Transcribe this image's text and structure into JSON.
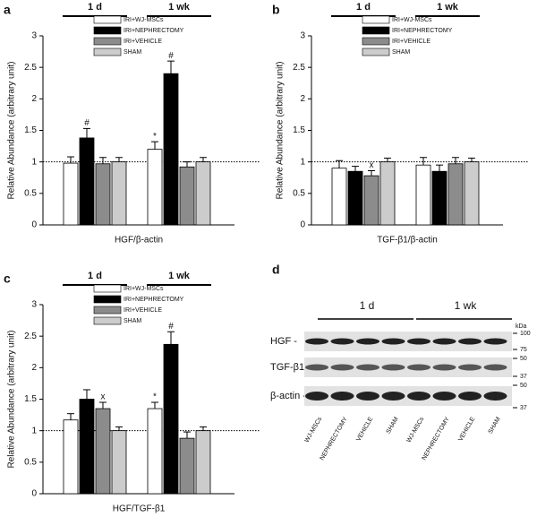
{
  "chart_data": [
    {
      "type": "bar",
      "panel": "a",
      "ylabel": "Relative Abundance (arbitrary unit)",
      "xlabel": "HGF/β-actin",
      "categories": [
        "1 d",
        "1 wk"
      ],
      "ylim": [
        0,
        3
      ],
      "yticks": [
        0,
        0.5,
        1,
        1.5,
        2,
        2.5,
        3
      ],
      "reference_line": 1,
      "series": [
        {
          "name": "IRI+WJ-MSCs",
          "color": "#ffffff",
          "values": [
            0.98,
            1.2
          ],
          "errors": [
            0.1,
            0.12
          ],
          "annotations": [
            null,
            "*"
          ]
        },
        {
          "name": "IRI+NEPHRECTOMY",
          "color": "#000000",
          "values": [
            1.38,
            2.4
          ],
          "errors": [
            0.15,
            0.2
          ],
          "annotations": [
            "#",
            "#"
          ]
        },
        {
          "name": "IRI+VEHICLE",
          "color": "#8c8c8c",
          "values": [
            0.97,
            0.92
          ],
          "errors": [
            0.1,
            0.08
          ],
          "annotations": [
            null,
            null
          ]
        },
        {
          "name": "SHAM",
          "color": "#cccccc",
          "values": [
            1.0,
            1.0
          ],
          "errors": [
            0.07,
            0.07
          ],
          "annotations": [
            null,
            null
          ]
        }
      ]
    },
    {
      "type": "bar",
      "panel": "b",
      "ylabel": "Relative Abundance (arbitrary unit)",
      "xlabel": "TGF-β1/β-actin",
      "categories": [
        "1 d",
        "1 wk"
      ],
      "ylim": [
        0,
        3
      ],
      "yticks": [
        0,
        0.5,
        1,
        1.5,
        2,
        2.5,
        3
      ],
      "reference_line": 1,
      "series": [
        {
          "name": "IRI+WJ-MSCs",
          "color": "#ffffff",
          "values": [
            0.9,
            0.95
          ],
          "errors": [
            0.12,
            0.12
          ],
          "annotations": [
            null,
            null
          ]
        },
        {
          "name": "IRI+NEPHRECTOMY",
          "color": "#000000",
          "values": [
            0.85,
            0.85
          ],
          "errors": [
            0.08,
            0.1
          ],
          "annotations": [
            null,
            null
          ]
        },
        {
          "name": "IRI+VEHICLE",
          "color": "#8c8c8c",
          "values": [
            0.78,
            0.97
          ],
          "errors": [
            0.08,
            0.1
          ],
          "annotations": [
            "x",
            null
          ]
        },
        {
          "name": "SHAM",
          "color": "#cccccc",
          "values": [
            1.0,
            1.0
          ],
          "errors": [
            0.06,
            0.06
          ],
          "annotations": [
            null,
            null
          ]
        }
      ]
    },
    {
      "type": "bar",
      "panel": "c",
      "ylabel": "Relative Abundance (arbitrary unit)",
      "xlabel": "HGF/TGF-β1",
      "categories": [
        "1 d",
        "1 wk"
      ],
      "ylim": [
        0,
        3
      ],
      "yticks": [
        0,
        0.5,
        1,
        1.5,
        2,
        2.5,
        3
      ],
      "reference_line": 1,
      "series": [
        {
          "name": "IRI+WJ-MSCs",
          "color": "#ffffff",
          "values": [
            1.17,
            1.35
          ],
          "errors": [
            0.1,
            0.1
          ],
          "annotations": [
            null,
            "*"
          ]
        },
        {
          "name": "IRI+NEPHRECTOMY",
          "color": "#000000",
          "values": [
            1.5,
            2.37
          ],
          "errors": [
            0.15,
            0.2
          ],
          "annotations": [
            null,
            "#"
          ]
        },
        {
          "name": "IRI+VEHICLE",
          "color": "#8c8c8c",
          "values": [
            1.35,
            0.88
          ],
          "errors": [
            0.1,
            0.1
          ],
          "annotations": [
            "x",
            null
          ]
        },
        {
          "name": "SHAM",
          "color": "#cccccc",
          "values": [
            1.0,
            1.0
          ],
          "errors": [
            0.06,
            0.06
          ],
          "annotations": [
            null,
            null
          ]
        }
      ]
    }
  ],
  "blot": {
    "panel": "d",
    "groups": [
      "1 d",
      "1 wk"
    ],
    "unit": "kDa",
    "rows": [
      "HGF -",
      "TGF-β1-",
      "β-actin -"
    ],
    "markers": [
      100,
      75,
      50,
      37,
      50,
      37
    ],
    "lanes": [
      "WJ-MSCs",
      "NEPHRECTOMY",
      "VEHICLE",
      "SHAM",
      "WJ-MSCs",
      "NEPHRECTOMY",
      "VEHICLE",
      "SHAM"
    ]
  }
}
